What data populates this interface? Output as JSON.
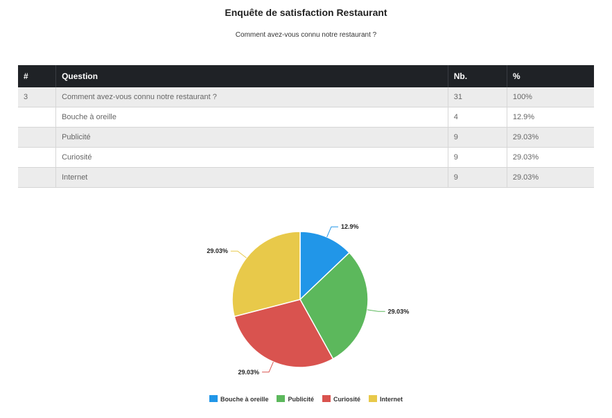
{
  "title": "Enquête de satisfaction Restaurant",
  "subtitle": "Comment avez-vous connu notre restaurant ?",
  "table": {
    "headers": [
      "#",
      "Question",
      "Nb.",
      "%"
    ],
    "rows": [
      {
        "num": "3",
        "question": "Comment avez-vous connu notre restaurant ?",
        "nb": "31",
        "pct": "100%"
      },
      {
        "num": "",
        "question": "Bouche à oreille",
        "nb": "4",
        "pct": "12.9%"
      },
      {
        "num": "",
        "question": "Publicité",
        "nb": "9",
        "pct": "29.03%"
      },
      {
        "num": "",
        "question": "Curiosité",
        "nb": "9",
        "pct": "29.03%"
      },
      {
        "num": "",
        "question": "Internet",
        "nb": "9",
        "pct": "29.03%"
      }
    ]
  },
  "chart_data": {
    "type": "pie",
    "categories": [
      "Bouche à oreille",
      "Publicité",
      "Curiosité",
      "Internet"
    ],
    "values": [
      12.9,
      29.03,
      29.03,
      29.03
    ],
    "data_labels": [
      "12.9%",
      "29.03%",
      "29.03%",
      "29.03%"
    ],
    "colors": [
      "#2196e8",
      "#5cb85c",
      "#d9534f",
      "#e8c94a"
    ],
    "legend_position": "bottom"
  }
}
